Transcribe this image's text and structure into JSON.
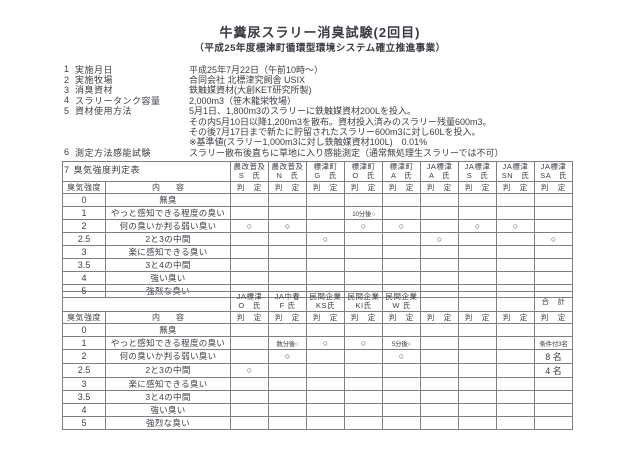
{
  "title": "牛糞尿スラリー消臭試験(2回目)",
  "subtitle": "（平成25年度標津町循環型環境システム確立推進事業）",
  "info_lines": [
    {
      "no": "1",
      "label": "実施月日",
      "value": "平成25年7月22日（午前10時～）"
    },
    {
      "no": "2",
      "label": "実施牧場",
      "value": "合同会社 北標津究飼舎 USIX"
    },
    {
      "no": "3",
      "label": "消臭資材",
      "value": "鉄触媒資材(大創KET研究所製)"
    },
    {
      "no": "4",
      "label": "スラリータンク容量",
      "value": "2,000m3（笹木龍栄牧場）"
    },
    {
      "no": "5",
      "label": "資材使用方法",
      "value": "5月1日、1,800m3のスラリーに鉄触媒資材200Lを投入。"
    },
    {
      "no": "",
      "label": "",
      "value": "その内5月10日以降1,200m3を散布。資材投入済みのスラリー残量600m3。"
    },
    {
      "no": "",
      "label": "",
      "value": "その後7月17日まで新たに貯留されたスラリー600m3に対し60Lを投入。"
    },
    {
      "no": "",
      "label": "",
      "value": "※基準値(スラリー1,000m3に対し鉄触媒資材100L)　0.01%"
    },
    {
      "no": "6",
      "label": "測定方法感能試験",
      "value": "スラリー散布後直ちに草地に入り感能測定（通常無処理生スラリーでは不可）"
    }
  ],
  "section7": {
    "no": "7",
    "label": "臭気強度判定表"
  },
  "headers": {
    "intensity": "臭気強度",
    "content": "内　　容",
    "judge": "判　定"
  },
  "levels": [
    {
      "level": "0",
      "desc": "無臭"
    },
    {
      "level": "1",
      "desc": "やっと感知できる程度の臭い"
    },
    {
      "level": "2",
      "desc": "何の臭いか判る弱い臭い"
    },
    {
      "level": "2.5",
      "desc": "2と3の中間"
    },
    {
      "level": "3",
      "desc": "楽に感知できる臭い"
    },
    {
      "level": "3.5",
      "desc": "3と4の中間"
    },
    {
      "level": "4",
      "desc": "強い臭い"
    },
    {
      "level": "5",
      "desc": "強烈な臭い"
    }
  ],
  "tables": [
    {
      "id": "table1",
      "name": "odor-rating-table-1",
      "judges": [
        {
          "org": "農改普及",
          "person": "S　氏",
          "marks": {
            "2": "○"
          }
        },
        {
          "org": "農改普及",
          "person": "N　氏",
          "marks": {
            "2": "○"
          }
        },
        {
          "org": "標津町",
          "person": "G　氏",
          "marks": {
            "2.5": "○"
          }
        },
        {
          "org": "標津町",
          "person": "O　氏",
          "marks": {
            "1": "10分後○",
            "2": "○"
          }
        },
        {
          "org": "標津町",
          "person": "A　氏",
          "marks": {
            "2": "○"
          }
        },
        {
          "org": "JA標津",
          "person": "A　氏",
          "marks": {
            "2.5": "○"
          }
        },
        {
          "org": "JA標津",
          "person": "S　氏",
          "marks": {
            "2": "○"
          }
        },
        {
          "org": "JA標津",
          "person": "SN　氏",
          "marks": {
            "2": "○"
          }
        },
        {
          "org": "JA標津",
          "person": "SA　氏",
          "marks": {
            "2.5": "○"
          }
        }
      ]
    },
    {
      "id": "table2",
      "name": "odor-rating-table-2",
      "judges": [
        {
          "org": "JA標津",
          "person": "O　氏",
          "marks": {
            "2.5": "○"
          }
        },
        {
          "org": "JA中春",
          "person": "F 氏",
          "marks": {
            "1": "数分後○",
            "2": "○"
          }
        },
        {
          "org": "民間企業",
          "person": "KS氏",
          "marks": {
            "1": "○"
          }
        },
        {
          "org": "民間企業",
          "person": "KI氏",
          "marks": {
            "1": "○"
          }
        },
        {
          "org": "民間企業",
          "person": "W 氏",
          "marks": {
            "1": "5分後○",
            "2": "○"
          }
        },
        {
          "org": "",
          "person": "",
          "marks": {}
        },
        {
          "org": "",
          "person": "",
          "marks": {}
        },
        {
          "org": "",
          "person": "",
          "marks": {}
        }
      ],
      "total": {
        "label": "合　計",
        "marks": {
          "1": "条件付3名",
          "2": "8 名",
          "2.5": "4 名"
        }
      }
    }
  ],
  "colors": {
    "accent_red": "#dd7a6e",
    "text": "#3e3e45",
    "border": "#7e7e84"
  }
}
